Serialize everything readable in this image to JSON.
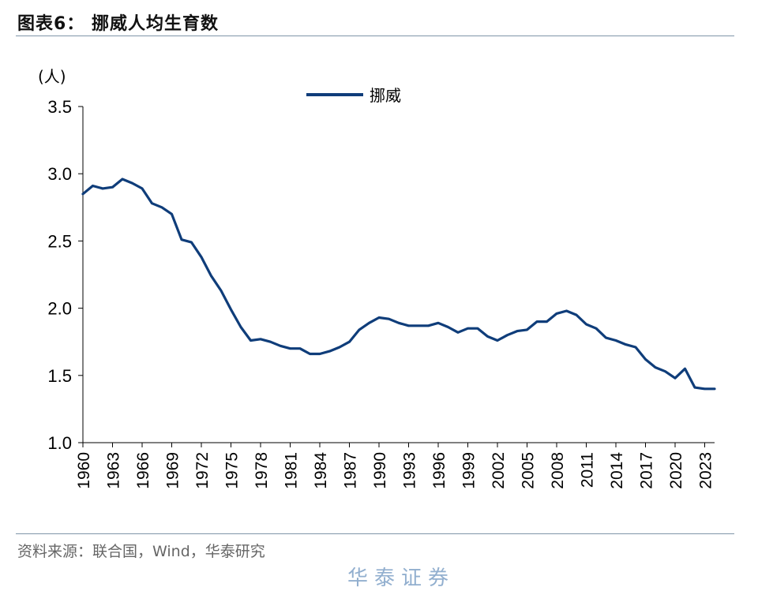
{
  "header": {
    "title": "图表6：  挪威人均生育数"
  },
  "footer": {
    "source": "资料来源：联合国，Wind，华泰研究",
    "watermark": "华泰证券"
  },
  "chart_data": {
    "type": "line",
    "unit_label": "(人)",
    "ylim": [
      1.0,
      3.5
    ],
    "yticks": [
      "1.0",
      "1.5",
      "2.0",
      "2.5",
      "3.0",
      "3.5"
    ],
    "xticks": [
      "1960",
      "1963",
      "1966",
      "1969",
      "1972",
      "1975",
      "1978",
      "1981",
      "1984",
      "1987",
      "1990",
      "1993",
      "1996",
      "1999",
      "2002",
      "2005",
      "2008",
      "2011",
      "2014",
      "2017",
      "2020",
      "2023"
    ],
    "legend_position": "top-center",
    "grid": false,
    "series": [
      {
        "name": "挪威",
        "color": "#0f3d7a",
        "x": [
          1960,
          1961,
          1962,
          1963,
          1964,
          1965,
          1966,
          1967,
          1968,
          1969,
          1970,
          1971,
          1972,
          1973,
          1974,
          1975,
          1976,
          1977,
          1978,
          1979,
          1980,
          1981,
          1982,
          1983,
          1984,
          1985,
          1986,
          1987,
          1988,
          1989,
          1990,
          1991,
          1992,
          1993,
          1994,
          1995,
          1996,
          1997,
          1998,
          1999,
          2000,
          2001,
          2002,
          2003,
          2004,
          2005,
          2006,
          2007,
          2008,
          2009,
          2010,
          2011,
          2012,
          2013,
          2014,
          2015,
          2016,
          2017,
          2018,
          2019,
          2020,
          2021,
          2022,
          2023,
          2024
        ],
        "values": [
          2.85,
          2.91,
          2.89,
          2.9,
          2.96,
          2.93,
          2.89,
          2.78,
          2.75,
          2.7,
          2.51,
          2.49,
          2.38,
          2.24,
          2.13,
          1.99,
          1.86,
          1.76,
          1.77,
          1.75,
          1.72,
          1.7,
          1.7,
          1.66,
          1.66,
          1.68,
          1.71,
          1.75,
          1.84,
          1.89,
          1.93,
          1.92,
          1.89,
          1.87,
          1.87,
          1.87,
          1.89,
          1.86,
          1.82,
          1.85,
          1.85,
          1.79,
          1.76,
          1.8,
          1.83,
          1.84,
          1.9,
          1.9,
          1.96,
          1.98,
          1.95,
          1.88,
          1.85,
          1.78,
          1.76,
          1.73,
          1.71,
          1.62,
          1.56,
          1.53,
          1.48,
          1.55,
          1.41,
          1.4,
          1.4
        ]
      }
    ]
  }
}
